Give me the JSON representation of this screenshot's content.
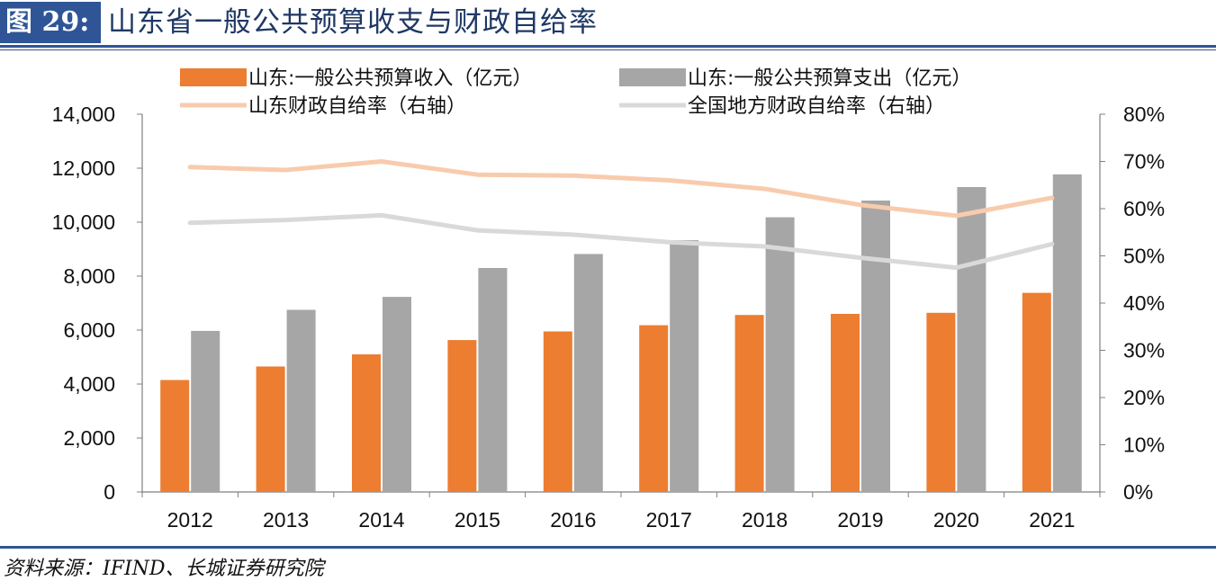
{
  "figure": {
    "label": "图 29:",
    "title": "山东省一般公共预算收支与财政自给率",
    "source": "资料来源：IFIND、长城证券研究院"
  },
  "chart_data": {
    "type": "bar",
    "categories": [
      "2012",
      "2013",
      "2014",
      "2015",
      "2016",
      "2017",
      "2018",
      "2019",
      "2020",
      "2021"
    ],
    "series": [
      {
        "name": "山东:一般公共预算收入（亿元）",
        "type": "bar",
        "axis": "left",
        "color": "#ed7d31",
        "values": [
          4150,
          4650,
          5100,
          5630,
          5950,
          6180,
          6560,
          6600,
          6640,
          7380
        ]
      },
      {
        "name": "山东:一般公共预算支出（亿元）",
        "type": "bar",
        "axis": "left",
        "color": "#a6a6a6",
        "values": [
          5970,
          6750,
          7230,
          8300,
          8820,
          9330,
          10180,
          10800,
          11300,
          11770
        ]
      },
      {
        "name": "山东财政自给率（右轴）",
        "type": "line",
        "axis": "right",
        "color": "#f8cbad",
        "values": [
          68.8,
          68.2,
          70.0,
          67.2,
          67.0,
          66.0,
          64.2,
          60.8,
          58.5,
          62.3
        ]
      },
      {
        "name": "全国地方财政自给率（右轴）",
        "type": "line",
        "axis": "right",
        "color": "#d9d9d9",
        "values": [
          57.0,
          57.6,
          58.6,
          55.4,
          54.5,
          52.9,
          52.0,
          49.6,
          47.5,
          52.5
        ]
      }
    ],
    "y_left": {
      "ylim": [
        0,
        14000
      ],
      "ticks": [
        "0",
        "2,000",
        "4,000",
        "6,000",
        "8,000",
        "10,000",
        "12,000",
        "14,000"
      ]
    },
    "y_right": {
      "ylim": [
        0,
        80
      ],
      "ticks": [
        "0%",
        "10%",
        "20%",
        "30%",
        "40%",
        "50%",
        "60%",
        "70%",
        "80%"
      ]
    },
    "legend": "top",
    "grid": false
  }
}
